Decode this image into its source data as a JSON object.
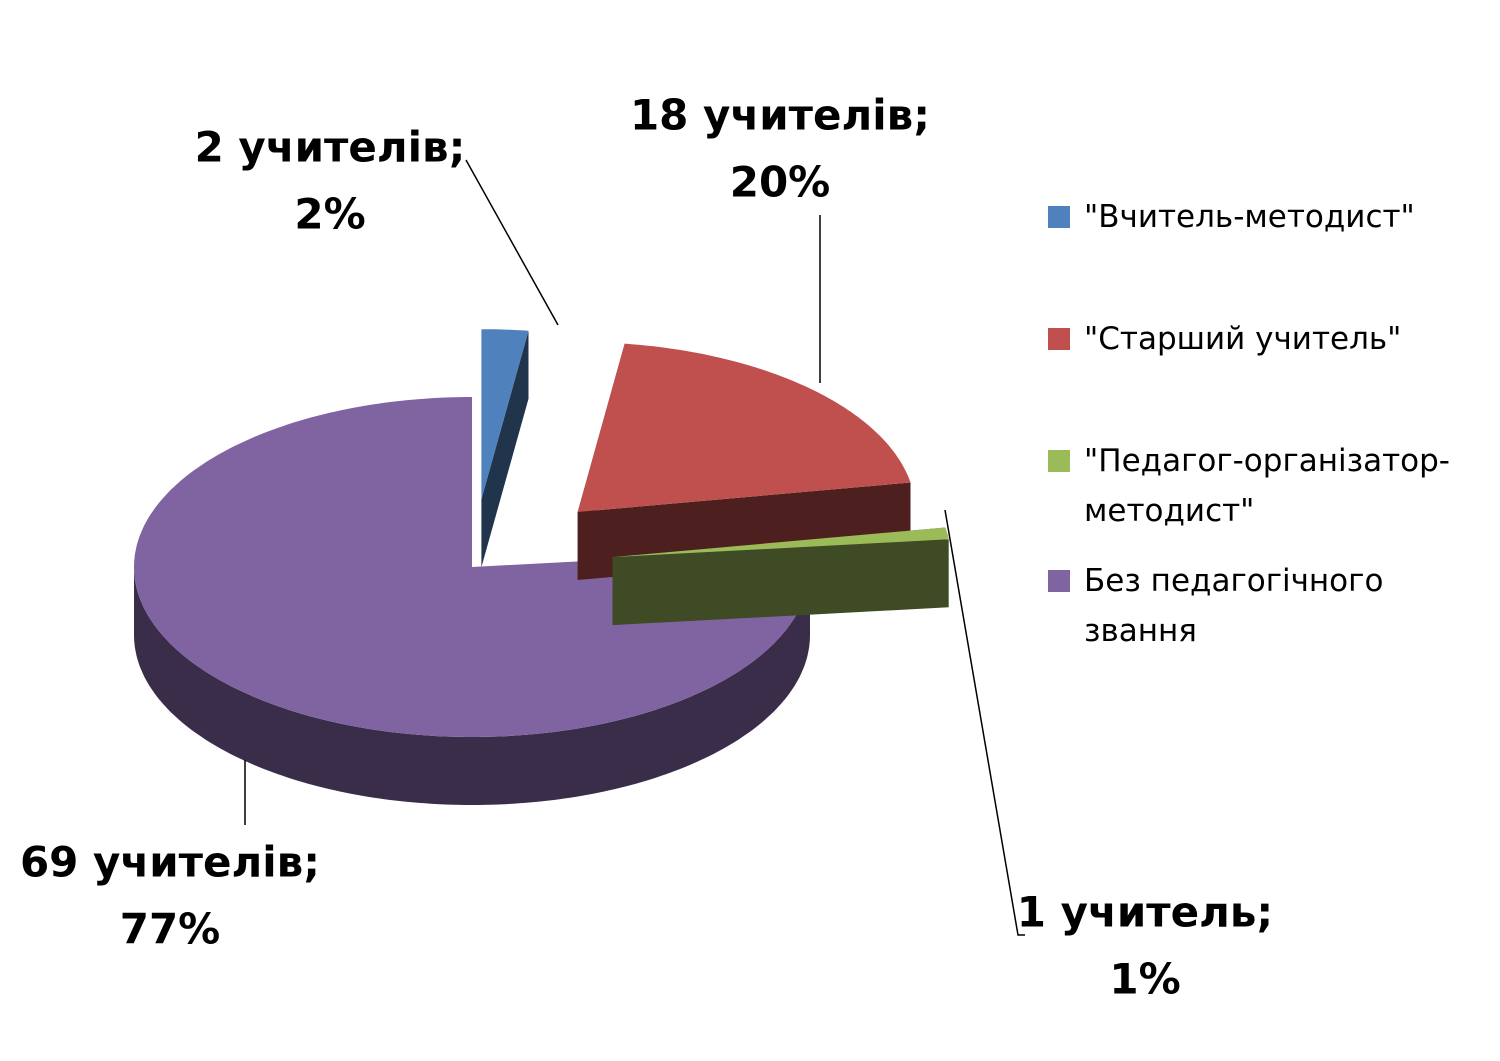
{
  "chart_data": {
    "type": "pie",
    "categories": [
      "\"Вчитель-методист\"",
      "\"Старший учитель\"",
      "\"Педагог-організатор-методист\"",
      "Без педагогічного звання"
    ],
    "values": [
      2,
      18,
      1,
      69
    ],
    "value_labels": [
      "2 учителів;",
      "18 учителів;",
      "1 учитель;",
      "69 учителів;"
    ],
    "percents": [
      2,
      20,
      1,
      77
    ],
    "percent_labels": [
      "2%",
      "20%",
      "1%",
      "77%"
    ],
    "colors": [
      "#4f81bd",
      "#c0504d",
      "#9bbb59",
      "#8064a2"
    ],
    "legend": "right"
  }
}
